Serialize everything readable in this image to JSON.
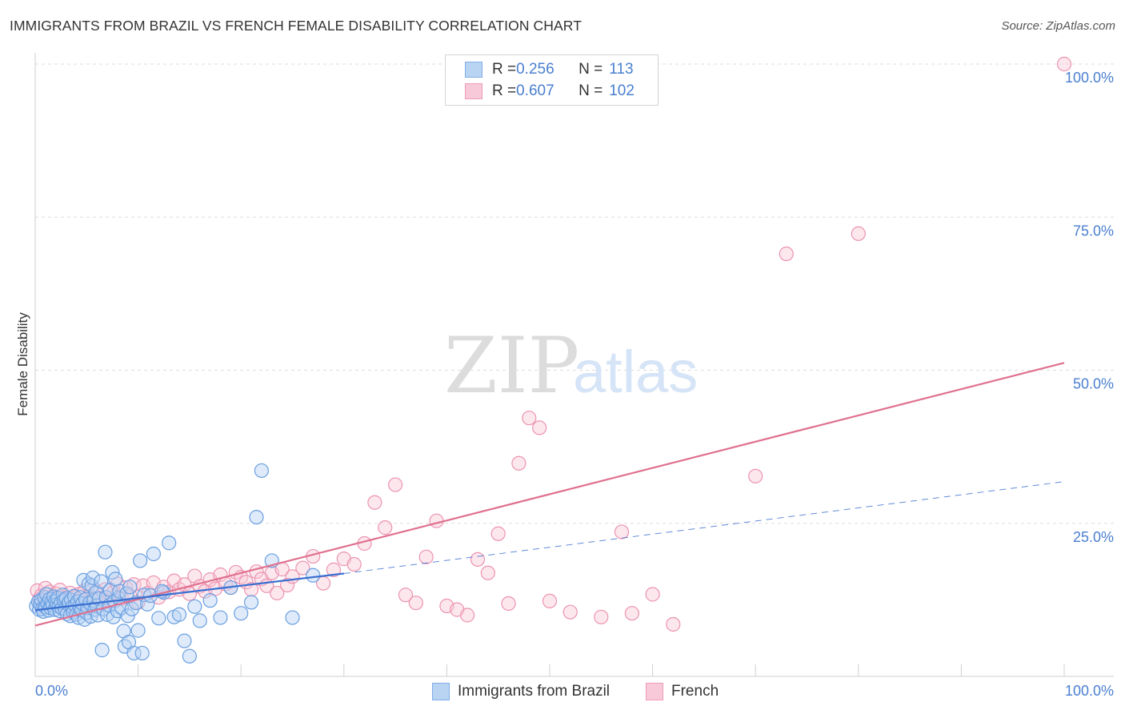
{
  "header": {
    "title": "IMMIGRANTS FROM BRAZIL VS FRENCH FEMALE DISABILITY CORRELATION CHART",
    "source": "Source: ZipAtlas.com"
  },
  "watermark": {
    "zip": "ZIP",
    "atlas": "atlas"
  },
  "legend": {
    "r_label": "R = ",
    "n_label": "N = ",
    "rows": [
      {
        "series": "Immigrants from Brazil",
        "r": "0.256",
        "n": "113",
        "color": "#4a7fd0"
      },
      {
        "series": "French",
        "r": "0.607",
        "n": "102",
        "color": "#e0708f"
      }
    ]
  },
  "colors": {
    "blue_fill": "#b9d3f3",
    "blue_stroke": "#6a9fe0",
    "blue_line": "#3a6fd0",
    "pink_fill": "#f8c9d8",
    "pink_stroke": "#ec93b1",
    "pink_line": "#e0708f",
    "tick_label": "#4a7fd0",
    "grid": "#dddddd"
  },
  "chart_data": {
    "type": "scatter",
    "title": "IMMIGRANTS FROM BRAZIL VS FRENCH FEMALE DISABILITY CORRELATION CHART",
    "xlabel": "",
    "ylabel": "Female Disability",
    "xlim": [
      0,
      100
    ],
    "ylim": [
      0,
      100
    ],
    "x_tick_labels": [
      "0.0%",
      "100.0%"
    ],
    "y_tick_labels": [
      {
        "value": 25,
        "label": "25.0%"
      },
      {
        "value": 50,
        "label": "50.0%"
      },
      {
        "value": 75,
        "label": "75.0%"
      },
      {
        "value": 100,
        "label": "100.0%"
      }
    ],
    "grid": true,
    "legend_position": "bottom-center",
    "series": [
      {
        "name": "Immigrants from Brazil",
        "trend": {
          "x": [
            0,
            30
          ],
          "y": [
            10.8,
            16.8
          ],
          "extended_x": [
            30,
            100
          ],
          "extended_y": [
            16.8,
            31.8
          ]
        },
        "points": [
          [
            0.1,
            11.5
          ],
          [
            0.3,
            12.2
          ],
          [
            0.4,
            10.9
          ],
          [
            0.5,
            11.8
          ],
          [
            0.6,
            12.5
          ],
          [
            0.7,
            11.0
          ],
          [
            0.8,
            10.6
          ],
          [
            0.9,
            12.9
          ],
          [
            1.0,
            11.3
          ],
          [
            1.1,
            13.4
          ],
          [
            1.2,
            11.9
          ],
          [
            1.3,
            10.8
          ],
          [
            1.4,
            12.6
          ],
          [
            1.5,
            11.2
          ],
          [
            1.6,
            12.1
          ],
          [
            1.7,
            11.6
          ],
          [
            1.8,
            13.0
          ],
          [
            1.9,
            10.9
          ],
          [
            2.0,
            12.3
          ],
          [
            2.1,
            11.7
          ],
          [
            2.2,
            12.8
          ],
          [
            2.3,
            11.4
          ],
          [
            2.4,
            10.7
          ],
          [
            2.5,
            12.0
          ],
          [
            2.6,
            11.1
          ],
          [
            2.7,
            13.3
          ],
          [
            2.8,
            12.4
          ],
          [
            2.9,
            11.0
          ],
          [
            3.0,
            12.7
          ],
          [
            3.1,
            10.2
          ],
          [
            3.2,
            11.8
          ],
          [
            3.3,
            12.1
          ],
          [
            3.4,
            9.9
          ],
          [
            3.5,
            12.5
          ],
          [
            3.6,
            11.3
          ],
          [
            3.7,
            10.5
          ],
          [
            3.8,
            13.1
          ],
          [
            3.9,
            11.6
          ],
          [
            4.0,
            10.1
          ],
          [
            4.1,
            12.2
          ],
          [
            4.2,
            9.6
          ],
          [
            4.3,
            11.4
          ],
          [
            4.4,
            12.9
          ],
          [
            4.5,
            10.8
          ],
          [
            4.6,
            11.9
          ],
          [
            4.7,
            15.7
          ],
          [
            4.8,
            9.3
          ],
          [
            4.9,
            12.6
          ],
          [
            5.0,
            10.4
          ],
          [
            5.1,
            11.2
          ],
          [
            5.2,
            15.1
          ],
          [
            5.3,
            12.0
          ],
          [
            5.4,
            9.8
          ],
          [
            5.5,
            14.8
          ],
          [
            5.6,
            16.1
          ],
          [
            5.7,
            12.4
          ],
          [
            5.8,
            10.9
          ],
          [
            5.9,
            13.7
          ],
          [
            6.0,
            11.5
          ],
          [
            6.1,
            10.0
          ],
          [
            6.2,
            12.7
          ],
          [
            6.4,
            15.5
          ],
          [
            6.5,
            4.3
          ],
          [
            6.6,
            11.0
          ],
          [
            6.8,
            20.3
          ],
          [
            6.9,
            12.9
          ],
          [
            7.0,
            10.1
          ],
          [
            7.2,
            11.6
          ],
          [
            7.3,
            14.1
          ],
          [
            7.5,
            17.0
          ],
          [
            7.6,
            9.7
          ],
          [
            7.7,
            12.3
          ],
          [
            7.8,
            15.9
          ],
          [
            8.0,
            10.7
          ],
          [
            8.1,
            12.8
          ],
          [
            8.2,
            13.9
          ],
          [
            8.4,
            11.2
          ],
          [
            8.6,
            7.4
          ],
          [
            8.7,
            4.9
          ],
          [
            8.9,
            13.5
          ],
          [
            9.0,
            9.9
          ],
          [
            9.1,
            5.6
          ],
          [
            9.2,
            14.6
          ],
          [
            9.4,
            11.0
          ],
          [
            9.6,
            3.8
          ],
          [
            9.8,
            12.0
          ],
          [
            10.0,
            7.5
          ],
          [
            10.2,
            18.9
          ],
          [
            10.4,
            3.8
          ],
          [
            10.6,
            13.3
          ],
          [
            10.9,
            11.8
          ],
          [
            11.2,
            13.2
          ],
          [
            11.5,
            20.0
          ],
          [
            12.0,
            9.5
          ],
          [
            12.5,
            13.7
          ],
          [
            13.0,
            21.8
          ],
          [
            13.5,
            9.7
          ],
          [
            14.0,
            10.1
          ],
          [
            14.5,
            5.8
          ],
          [
            15.0,
            3.3
          ],
          [
            15.5,
            11.4
          ],
          [
            16.0,
            9.1
          ],
          [
            17.0,
            12.4
          ],
          [
            18.0,
            9.6
          ],
          [
            19.0,
            14.5
          ],
          [
            20.0,
            10.3
          ],
          [
            21.0,
            12.1
          ],
          [
            21.5,
            26.0
          ],
          [
            22.0,
            33.6
          ],
          [
            23.0,
            18.9
          ],
          [
            25.0,
            9.6
          ],
          [
            27.0,
            16.5
          ],
          [
            12.3,
            13.9
          ]
        ]
      },
      {
        "name": "French",
        "trend": {
          "x": [
            0,
            100
          ],
          "y": [
            8.3,
            51.2
          ]
        },
        "points": [
          [
            0.2,
            14.0
          ],
          [
            0.4,
            12.6
          ],
          [
            0.6,
            13.2
          ],
          [
            0.8,
            11.7
          ],
          [
            1.0,
            14.4
          ],
          [
            1.2,
            12.9
          ],
          [
            1.4,
            13.8
          ],
          [
            1.6,
            11.9
          ],
          [
            1.8,
            12.5
          ],
          [
            2.0,
            13.5
          ],
          [
            2.2,
            12.2
          ],
          [
            2.4,
            14.1
          ],
          [
            2.6,
            11.6
          ],
          [
            2.8,
            13.0
          ],
          [
            3.0,
            12.8
          ],
          [
            3.2,
            11.4
          ],
          [
            3.4,
            13.6
          ],
          [
            3.6,
            12.0
          ],
          [
            3.8,
            12.9
          ],
          [
            4.0,
            11.7
          ],
          [
            4.2,
            13.4
          ],
          [
            4.5,
            12.3
          ],
          [
            4.8,
            14.0
          ],
          [
            5.0,
            11.5
          ],
          [
            5.3,
            13.1
          ],
          [
            5.6,
            12.6
          ],
          [
            6.0,
            13.9
          ],
          [
            6.4,
            11.8
          ],
          [
            6.8,
            14.2
          ],
          [
            7.2,
            12.4
          ],
          [
            7.6,
            13.7
          ],
          [
            8.0,
            15.1
          ],
          [
            8.4,
            12.7
          ],
          [
            8.8,
            14.5
          ],
          [
            9.2,
            13.2
          ],
          [
            9.6,
            15.0
          ],
          [
            10.0,
            12.1
          ],
          [
            10.5,
            14.8
          ],
          [
            11.0,
            13.6
          ],
          [
            11.5,
            15.3
          ],
          [
            12.0,
            12.9
          ],
          [
            12.5,
            14.6
          ],
          [
            13.0,
            13.8
          ],
          [
            13.5,
            15.6
          ],
          [
            14.0,
            14.2
          ],
          [
            14.5,
            15.0
          ],
          [
            15.0,
            13.5
          ],
          [
            15.5,
            16.4
          ],
          [
            16.0,
            14.7
          ],
          [
            16.5,
            13.9
          ],
          [
            17.0,
            15.8
          ],
          [
            17.5,
            14.3
          ],
          [
            18.0,
            16.6
          ],
          [
            18.5,
            15.1
          ],
          [
            19.0,
            14.5
          ],
          [
            19.5,
            17.0
          ],
          [
            20.0,
            16.2
          ],
          [
            20.5,
            15.4
          ],
          [
            21.0,
            14.2
          ],
          [
            21.5,
            17.1
          ],
          [
            22.0,
            15.9
          ],
          [
            22.5,
            14.8
          ],
          [
            23.0,
            16.9
          ],
          [
            23.5,
            13.6
          ],
          [
            24.0,
            17.5
          ],
          [
            24.5,
            14.9
          ],
          [
            25.0,
            16.3
          ],
          [
            26.0,
            17.7
          ],
          [
            27.0,
            19.6
          ],
          [
            28.0,
            15.2
          ],
          [
            29.0,
            17.4
          ],
          [
            30.0,
            19.2
          ],
          [
            31.0,
            18.3
          ],
          [
            32.0,
            21.7
          ],
          [
            33.0,
            28.4
          ],
          [
            34.0,
            24.3
          ],
          [
            35.0,
            31.3
          ],
          [
            36.0,
            13.3
          ],
          [
            37.0,
            12.0
          ],
          [
            38.0,
            19.5
          ],
          [
            39.0,
            25.4
          ],
          [
            40.0,
            11.5
          ],
          [
            41.0,
            10.9
          ],
          [
            42.0,
            10.0
          ],
          [
            43.0,
            19.1
          ],
          [
            44.0,
            16.9
          ],
          [
            45.0,
            23.3
          ],
          [
            46.0,
            11.9
          ],
          [
            47.0,
            34.8
          ],
          [
            48.0,
            42.2
          ],
          [
            49.0,
            40.6
          ],
          [
            50.0,
            12.3
          ],
          [
            52.0,
            10.5
          ],
          [
            55.0,
            9.7
          ],
          [
            57.0,
            23.6
          ],
          [
            58.0,
            10.3
          ],
          [
            60.0,
            13.4
          ],
          [
            62.0,
            8.5
          ],
          [
            70.0,
            32.7
          ],
          [
            73.0,
            69.0
          ],
          [
            80.0,
            72.3
          ],
          [
            100.0,
            100.0
          ]
        ]
      }
    ]
  }
}
